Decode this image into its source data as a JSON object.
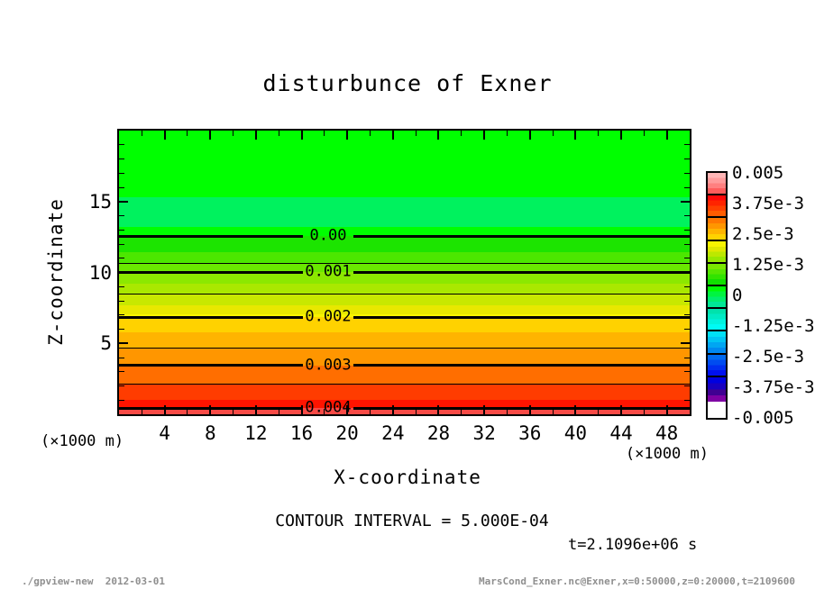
{
  "title": "disturbunce of Exner",
  "chart_data": {
    "type": "heatmap",
    "title": "disturbunce of Exner",
    "xlabel": "X-coordinate",
    "ylabel": "Z-coordinate",
    "x_unit": "(×1000 m)",
    "y_unit": "(×1000 m)",
    "xlim": [
      0,
      50
    ],
    "ylim": [
      0,
      20
    ],
    "x_axis": {
      "majors": [
        4,
        8,
        12,
        16,
        20,
        24,
        28,
        32,
        36,
        40,
        44,
        48
      ],
      "minor_step": 2
    },
    "y_axis": {
      "majors": [
        5,
        10,
        15
      ],
      "minor_step": 1
    },
    "contour_interval_text": "CONTOUR INTERVAL = 5.000E-04",
    "time_text": "t=2.1096e+06 s",
    "tone_bands": [
      {
        "z_top": 20.0,
        "z_bot": 15.3,
        "color": "#00FF00"
      },
      {
        "z_top": 15.3,
        "z_bot": 13.2,
        "color": "#00F25E"
      },
      {
        "z_top": 13.2,
        "z_bot": 12.54,
        "color": "#00FF00"
      },
      {
        "z_top": 12.54,
        "z_bot": 11.4,
        "color": "#1CE400"
      },
      {
        "z_top": 11.4,
        "z_bot": 10.66,
        "color": "#4CE700"
      },
      {
        "z_top": 10.66,
        "z_bot": 10.03,
        "color": "#6AE800"
      },
      {
        "z_top": 10.03,
        "z_bot": 9.2,
        "color": "#8CE800"
      },
      {
        "z_top": 9.2,
        "z_bot": 8.46,
        "color": "#AAE800"
      },
      {
        "z_top": 8.46,
        "z_bot": 7.7,
        "color": "#C8E800"
      },
      {
        "z_top": 7.7,
        "z_bot": 7.05,
        "color": "#E8E800"
      },
      {
        "z_top": 7.05,
        "z_bot": 6.83,
        "color": "#F8F400"
      },
      {
        "z_top": 6.83,
        "z_bot": 5.8,
        "color": "#FFD200"
      },
      {
        "z_top": 5.8,
        "z_bot": 4.64,
        "color": "#FFB400"
      },
      {
        "z_top": 4.64,
        "z_bot": 3.45,
        "color": "#FF9600"
      },
      {
        "z_top": 3.45,
        "z_bot": 2.13,
        "color": "#FF6E00"
      },
      {
        "z_top": 2.13,
        "z_bot": 1.0,
        "color": "#FF3C00"
      },
      {
        "z_top": 1.0,
        "z_bot": 0.44,
        "color": "#FF1400"
      },
      {
        "z_top": 0.44,
        "z_bot": 0.0,
        "color": "#F84A46"
      }
    ],
    "labeled_contours": [
      {
        "label": "0.00",
        "z": 12.54,
        "value": 0.0
      },
      {
        "label": "0.001",
        "z": 10.03,
        "value": 0.001
      },
      {
        "label": "0.002",
        "z": 6.83,
        "value": 0.002
      },
      {
        "label": "0.003",
        "z": 3.45,
        "value": 0.003
      },
      {
        "label": "0.004",
        "z": 0.44,
        "value": 0.004
      }
    ],
    "thin_contours": [
      {
        "z": 10.66,
        "value": 0.0005
      },
      {
        "z": 8.46,
        "value": 0.0015
      },
      {
        "z": 4.64,
        "value": 0.0025
      },
      {
        "z": 2.13,
        "value": 0.0035
      }
    ],
    "colorbar": {
      "labels": [
        "0.005",
        "3.75e-3",
        "2.5e-3",
        "1.25e-3",
        "0",
        "-1.25e-3",
        "-2.5e-3",
        "-3.75e-3",
        "-0.005"
      ],
      "range": [
        -0.005,
        0.005
      ],
      "boxes": [
        [
          "#FFB6B6",
          "#FF9C9C",
          "#FF8080",
          "#FF5C5C"
        ],
        [
          "#FF0808",
          "#FF2400",
          "#FF4000",
          "#FF5C00"
        ],
        [
          "#FF7800",
          "#FF9600",
          "#FFB400",
          "#FFD200"
        ],
        [
          "#F8F400",
          "#E0E800",
          "#BCE800",
          "#98E800"
        ],
        [
          "#7AE800",
          "#56E600",
          "#32E300",
          "#10E000"
        ],
        [
          "#00FB04",
          "#00F440",
          "#00EE6E",
          "#00E896"
        ],
        [
          "#00E2AC",
          "#00EAC4",
          "#00F2DE",
          "#00FAF4"
        ],
        [
          "#00E0F6",
          "#00C4F4",
          "#00A6F2",
          "#0088F0"
        ],
        [
          "#006AF0",
          "#004CF0",
          "#002EF0",
          "#0010F0"
        ],
        [
          "#0000E0",
          "#1800C0",
          "#400092",
          "#7E00A4"
        ]
      ]
    }
  },
  "footer": {
    "left": "./gpview-new  2012-03-01",
    "right": "MarsCond_Exner.nc@Exner,x=0:50000,z=0:20000,t=2109600"
  }
}
